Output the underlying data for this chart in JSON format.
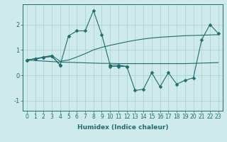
{
  "title": "",
  "xlabel": "Humidex (Indice chaleur)",
  "x_values": [
    0,
    1,
    2,
    3,
    4,
    5,
    6,
    7,
    8,
    9,
    10,
    11,
    12,
    13,
    14,
    15,
    16,
    17,
    18,
    19,
    20,
    21,
    22,
    23
  ],
  "line1_y": [
    0.6,
    0.65,
    0.7,
    0.75,
    0.4,
    1.55,
    1.75,
    1.75,
    2.55,
    1.6,
    0.4,
    0.4,
    0.35,
    null,
    null,
    null,
    null,
    null,
    null,
    null,
    null,
    null,
    null,
    null
  ],
  "line2_y": [
    0.6,
    0.65,
    0.7,
    0.75,
    0.4,
    null,
    null,
    null,
    null,
    null,
    0.35,
    0.35,
    0.35,
    -0.6,
    -0.55,
    0.1,
    -0.45,
    0.1,
    -0.35,
    -0.2,
    -0.1,
    1.4,
    2.0,
    1.65
  ],
  "line3_y": [
    0.6,
    0.58,
    0.56,
    0.54,
    0.52,
    0.51,
    0.5,
    0.49,
    0.48,
    0.47,
    0.47,
    0.46,
    0.46,
    0.46,
    0.46,
    0.46,
    0.46,
    0.46,
    0.46,
    0.46,
    0.47,
    0.48,
    0.49,
    0.5
  ],
  "line4_y": [
    0.6,
    0.65,
    0.72,
    0.78,
    0.55,
    0.6,
    0.72,
    0.85,
    1.0,
    1.1,
    1.18,
    1.25,
    1.32,
    1.38,
    1.43,
    1.47,
    1.5,
    1.52,
    1.54,
    1.56,
    1.57,
    1.58,
    1.59,
    1.6
  ],
  "bg_color": "#ceeaea",
  "grid_color": "#a8cece",
  "line_color": "#1e6e6e",
  "marker": "D",
  "marker_size": 2.5,
  "linewidth": 0.8,
  "ylim": [
    -1.4,
    2.8
  ],
  "yticks": [
    -1,
    0,
    1,
    2
  ],
  "xlim": [
    -0.5,
    23.5
  ],
  "tick_fontsize": 5.5,
  "xlabel_fontsize": 6.5
}
